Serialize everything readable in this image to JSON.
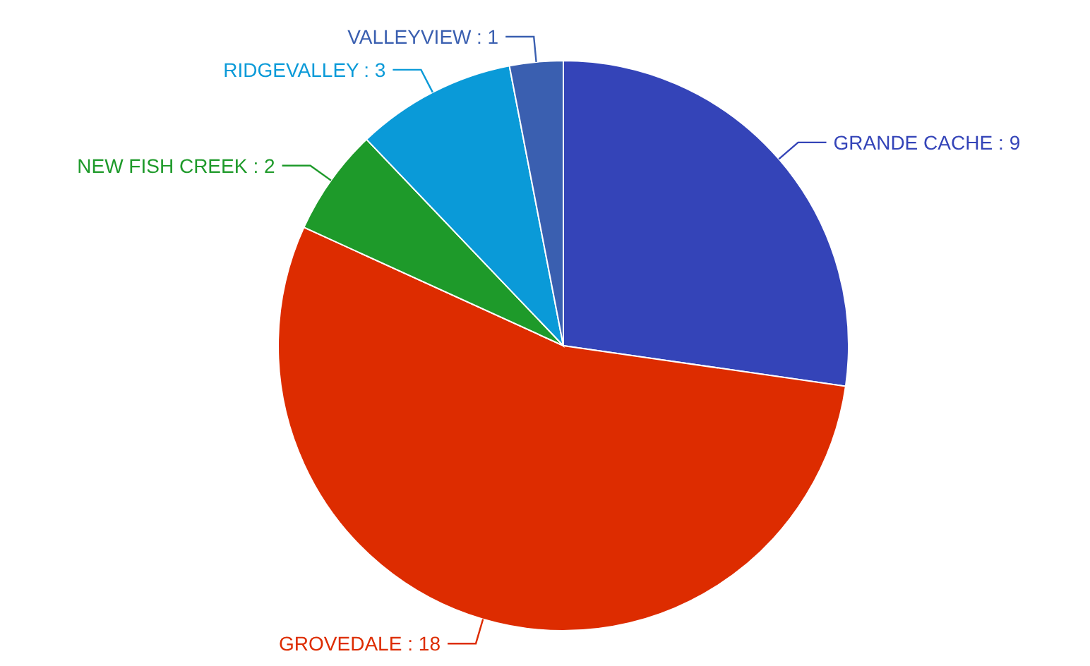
{
  "chart_data": {
    "type": "pie",
    "categories": [
      "GRANDE CACHE",
      "GROVEDALE",
      "NEW FISH CREEK",
      "RIDGEVALLEY",
      "VALLEYVIEW"
    ],
    "values": [
      9,
      18,
      2,
      3,
      1
    ],
    "value_labels": [
      ": 9",
      ": 18",
      ": 2",
      ": 3",
      ": 1"
    ],
    "colors": [
      "#3444b8",
      "#dd2c00",
      "#1e9a2a",
      "#0a9ad8",
      "#3a5fb0"
    ]
  }
}
